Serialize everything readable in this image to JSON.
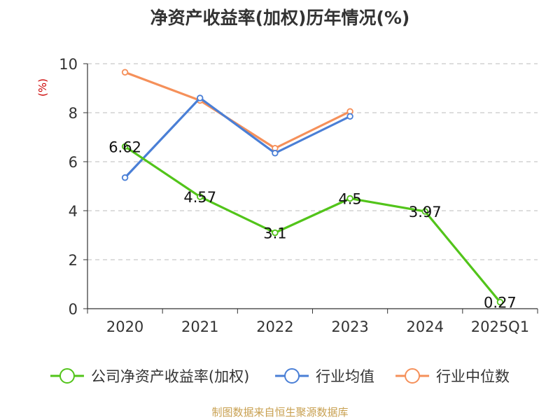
{
  "chart_data": {
    "type": "line",
    "title": "净资产收益率(加权)历年情况(%)",
    "ylabel": "(%)",
    "xlabel": "",
    "categories": [
      "2020",
      "2021",
      "2022",
      "2023",
      "2024",
      "2025Q1"
    ],
    "ylim": [
      0,
      10
    ],
    "yticks": [
      0,
      2,
      4,
      6,
      8,
      10
    ],
    "grid": true,
    "legend_position": "bottom",
    "series": [
      {
        "name": "公司净资产收益率(加权)",
        "color": "#52c41a",
        "values": [
          6.62,
          4.57,
          3.1,
          4.5,
          3.97,
          0.27
        ],
        "labels": [
          "6.62",
          "4.57",
          "3.1",
          "4.5",
          "3.97",
          "0.27"
        ]
      },
      {
        "name": "行业均值",
        "color": "#4a7fd6",
        "values": [
          5.35,
          8.6,
          6.35,
          7.85,
          null,
          null
        ]
      },
      {
        "name": "行业中位数",
        "color": "#f5905a",
        "values": [
          9.65,
          8.5,
          6.55,
          8.05,
          null,
          null
        ]
      }
    ],
    "source": "制图数据来自恒生聚源数据库"
  },
  "colors": {
    "title": "#333333",
    "axis": "#333333",
    "grid": "#bbbbbb",
    "ylabel": "#cc0000",
    "source": "#c8a050"
  }
}
